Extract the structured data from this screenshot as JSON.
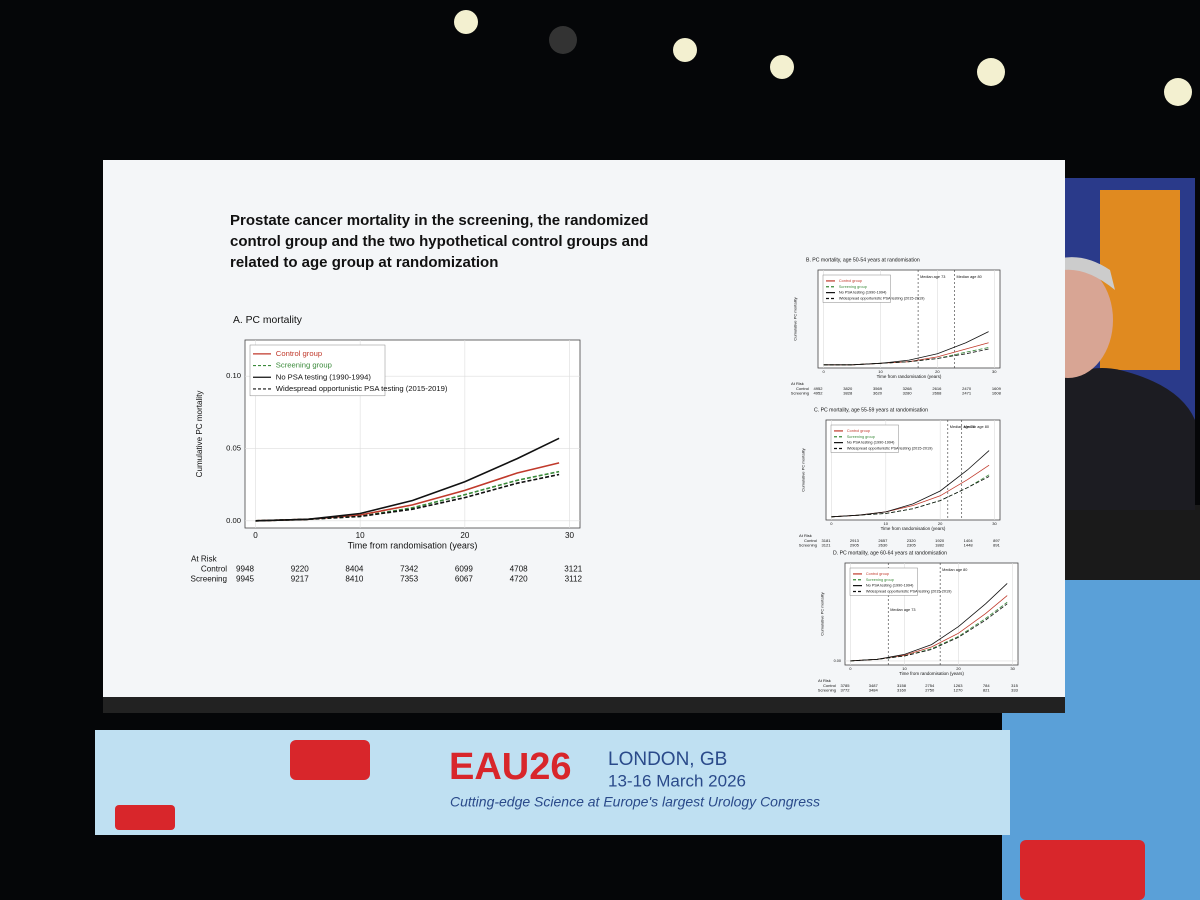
{
  "slide": {
    "title": "Prostate cancer mortality in the screening, the randomized control group and the two hypothetical control groups and related to age group at randomization"
  },
  "banner": {
    "logo": "EAU26",
    "place": "LONDON, GB",
    "dates": "13-16 March 2026",
    "tagline": "Cutting-edge Science at Europe's largest Urology Congress"
  },
  "chart_data": [
    {
      "type": "line",
      "title": "A. PC mortality",
      "xlabel": "Time from randomisation (years)",
      "ylabel": "Cumulative PC mortality",
      "x": [
        0,
        5,
        10,
        15,
        20,
        25,
        29
      ],
      "xlim": [
        -1,
        31
      ],
      "xticks": [
        0,
        10,
        20,
        30
      ],
      "ylim": [
        -0.005,
        0.125
      ],
      "yticks": [
        {
          "value": 0,
          "label": "0.00"
        },
        {
          "value": 0.05,
          "label": "0.05"
        },
        {
          "value": 0.1,
          "label": "0.10"
        }
      ],
      "grid": true,
      "series": [
        {
          "name": "Control group",
          "color": "#c0392b",
          "dash": false,
          "values": [
            0,
            0.001,
            0.004,
            0.011,
            0.021,
            0.033,
            0.04
          ]
        },
        {
          "name": "Screening group",
          "color": "#3a8a3a",
          "dash": true,
          "values": [
            0,
            0.001,
            0.003,
            0.009,
            0.018,
            0.028,
            0.034
          ]
        },
        {
          "name": "No PSA testing (1990-1994)",
          "color": "#111111",
          "dash": false,
          "values": [
            0,
            0.001,
            0.005,
            0.014,
            0.027,
            0.043,
            0.057
          ]
        },
        {
          "name": "Widespread opportunistic PSA testing (2015-2019)",
          "color": "#111111",
          "dash": true,
          "values": [
            0,
            0.001,
            0.003,
            0.008,
            0.016,
            0.026,
            0.032
          ]
        }
      ],
      "annotations": [],
      "at_risk": {
        "title": "At Risk",
        "rows": [
          {
            "name": "Control",
            "values": [
              9948,
              9220,
              8404,
              7342,
              6099,
              4708,
              3121
            ]
          },
          {
            "name": "Screening",
            "values": [
              9945,
              9217,
              8410,
              7353,
              6067,
              4720,
              3112
            ]
          }
        ]
      }
    },
    {
      "type": "line",
      "title": "B. PC mortality, age 50-54 years at randomisation",
      "xlabel": "Time from randomisation (years)",
      "ylabel": "Cumulative PC mortality",
      "x": [
        0,
        5,
        10,
        15,
        20,
        25,
        29
      ],
      "xlim": [
        -1,
        31
      ],
      "xticks": [
        0,
        10,
        20,
        30
      ],
      "ylim": [
        -0.002,
        0.06
      ],
      "yticks": [],
      "grid": true,
      "series": [
        {
          "name": "Control group",
          "color": "#c0392b",
          "dash": false,
          "values": [
            0,
            0,
            0.001,
            0.002,
            0.005,
            0.01,
            0.014
          ]
        },
        {
          "name": "Screening group",
          "color": "#3a8a3a",
          "dash": true,
          "values": [
            0,
            0,
            0.001,
            0.002,
            0.004,
            0.008,
            0.011
          ]
        },
        {
          "name": "No PSA testing (1990-1994)",
          "color": "#111111",
          "dash": false,
          "values": [
            0,
            0,
            0.001,
            0.003,
            0.007,
            0.014,
            0.021
          ]
        },
        {
          "name": "Widespread opportunistic PSA testing (2015-2019)",
          "color": "#111111",
          "dash": true,
          "values": [
            0,
            0,
            0.001,
            0.002,
            0.004,
            0.007,
            0.01
          ]
        }
      ],
      "annotations": [
        "Median age 73",
        "Median age 80"
      ],
      "at_risk": {
        "title": "At Risk",
        "rows": [
          {
            "name": "Control",
            "values": [
              4952,
              3820,
              3569,
              3268,
              2616,
              2470,
              1609
            ]
          },
          {
            "name": "Screening",
            "values": [
              4952,
              3828,
              3620,
              3280,
              2668,
              2471,
              1608
            ]
          }
        ]
      }
    },
    {
      "type": "line",
      "title": "C. PC mortality, age 55-59 years at randomisation",
      "xlabel": "Time from randomisation (years)",
      "ylabel": "Cumulative PC mortality",
      "x": [
        0,
        5,
        10,
        15,
        20,
        25,
        29
      ],
      "xlim": [
        -1,
        31
      ],
      "xticks": [
        0,
        10,
        20,
        30
      ],
      "ylim": [
        -0.002,
        0.06
      ],
      "yticks": [],
      "grid": true,
      "series": [
        {
          "name": "Control group",
          "color": "#c0392b",
          "dash": false,
          "values": [
            0,
            0.001,
            0.003,
            0.007,
            0.013,
            0.023,
            0.032
          ]
        },
        {
          "name": "Screening group",
          "color": "#3a8a3a",
          "dash": true,
          "values": [
            0,
            0.001,
            0.002,
            0.005,
            0.01,
            0.018,
            0.026
          ]
        },
        {
          "name": "No PSA testing (1990-1994)",
          "color": "#111111",
          "dash": false,
          "values": [
            0,
            0.001,
            0.003,
            0.008,
            0.016,
            0.029,
            0.041
          ]
        },
        {
          "name": "Widespread opportunistic PSA testing (2015-2019)",
          "color": "#111111",
          "dash": true,
          "values": [
            0,
            0.001,
            0.002,
            0.005,
            0.01,
            0.018,
            0.025
          ]
        }
      ],
      "annotations": [
        "Median age 70",
        "Median age 80"
      ],
      "at_risk": {
        "title": "At Risk",
        "rows": [
          {
            "name": "Control",
            "values": [
              3181,
              2913,
              2657,
              2320,
              1920,
              1404,
              897
            ]
          },
          {
            "name": "Screening",
            "values": [
              3121,
              2905,
              2630,
              2305,
              1882,
              1448,
              891
            ]
          }
        ]
      }
    },
    {
      "type": "line",
      "title": "D. PC mortality, age 60-64 years at randomisation",
      "xlabel": "Time from randomisation (years)",
      "ylabel": "Cumulative PC mortality",
      "x": [
        0,
        5,
        10,
        15,
        20,
        25,
        29
      ],
      "xlim": [
        -1,
        31
      ],
      "xticks": [
        0,
        10,
        20,
        30
      ],
      "ylim": [
        -0.005,
        0.12
      ],
      "yticks": [
        {
          "value": 0,
          "label": "0.00"
        }
      ],
      "grid": true,
      "series": [
        {
          "name": "Control group",
          "color": "#c0392b",
          "dash": false,
          "values": [
            0,
            0.002,
            0.007,
            0.017,
            0.034,
            0.058,
            0.08
          ]
        },
        {
          "name": "Screening group",
          "color": "#3a8a3a",
          "dash": true,
          "values": [
            0,
            0.002,
            0.006,
            0.015,
            0.03,
            0.052,
            0.072
          ]
        },
        {
          "name": "No PSA testing (1990-1994)",
          "color": "#111111",
          "dash": false,
          "values": [
            0,
            0.002,
            0.008,
            0.02,
            0.042,
            0.07,
            0.095
          ]
        },
        {
          "name": "Widespread opportunistic PSA testing (2015-2019)",
          "color": "#111111",
          "dash": true,
          "values": [
            0,
            0.002,
            0.006,
            0.014,
            0.029,
            0.05,
            0.07
          ]
        }
      ],
      "annotations": [
        "Median age 73",
        "Median age 80"
      ],
      "at_risk": {
        "title": "At Risk",
        "rows": [
          {
            "name": "Control",
            "values": [
              3785,
              3487,
              3158,
              2754,
              1263,
              784,
              315
            ]
          },
          {
            "name": "Screening",
            "values": [
              3772,
              3484,
              3160,
              2750,
              1270,
              821,
              333
            ]
          }
        ]
      }
    }
  ]
}
